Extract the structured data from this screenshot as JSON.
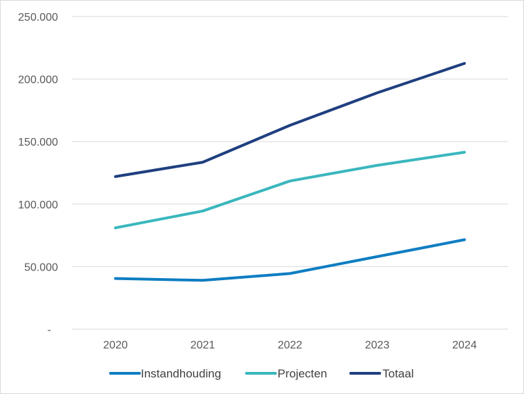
{
  "chart_data": {
    "type": "line",
    "title": "",
    "xlabel": "",
    "ylabel": "",
    "categories": [
      "2020",
      "2021",
      "2022",
      "2023",
      "2024"
    ],
    "ylim": [
      0,
      250000
    ],
    "y_ticks": [
      0,
      50000,
      100000,
      150000,
      200000,
      250000
    ],
    "y_tick_labels": [
      "-",
      "50.000",
      "100.000",
      "150.000",
      "200.000",
      "250.000"
    ],
    "grid": true,
    "legend_position": "bottom",
    "series": [
      {
        "name": "Instandhouding",
        "color": "#0e7dc2",
        "values": [
          40500,
          39000,
          44500,
          58000,
          71500
        ]
      },
      {
        "name": "Projecten",
        "color": "#3ab7bd",
        "values": [
          81000,
          94500,
          118500,
          131000,
          141500
        ]
      },
      {
        "name": "Totaal",
        "color": "#1f3f7f",
        "values": [
          122000,
          133500,
          163000,
          189000,
          212500
        ]
      }
    ]
  }
}
